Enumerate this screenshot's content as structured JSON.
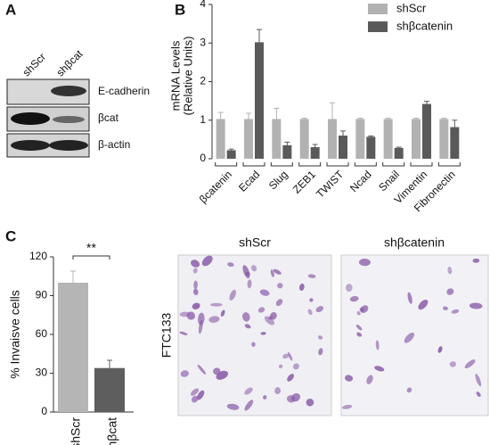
{
  "panel_labels": [
    "A",
    "B",
    "C"
  ],
  "blot": {
    "lanes": [
      "shScr",
      "shβcat"
    ],
    "bands": [
      "E-cadherin",
      "βcat",
      "β-actin"
    ]
  },
  "micrographs": {
    "columns": [
      "shScr",
      "shβcatenin"
    ],
    "row": "FTC133"
  },
  "chart_data": [
    {
      "type": "grouped_bar",
      "ylabel": [
        "mRNA Levels",
        "(Relative Units)"
      ],
      "categories": [
        "βcatenin",
        "Ecad",
        "Slug",
        "ZEB1",
        "TWIST",
        "Ncad",
        "Snail",
        "Vimentin",
        "Fibronectin"
      ],
      "series": [
        {
          "name": "shScr",
          "color": "#b2b2b2",
          "values": [
            1.03,
            1.03,
            1.03,
            1.03,
            1.03,
            1.03,
            1.03,
            1.03,
            1.03
          ],
          "errors": [
            0.17,
            0.15,
            0.28,
            0.02,
            0.42,
            0.02,
            0.02,
            0.02,
            0.02
          ]
        },
        {
          "name": "shβcatenin",
          "color": "#5a5a5a",
          "values": [
            0.22,
            3.02,
            0.35,
            0.3,
            0.6,
            0.57,
            0.28,
            1.42,
            0.82
          ],
          "errors": [
            0.03,
            0.33,
            0.08,
            0.07,
            0.12,
            0.02,
            0.02,
            0.07,
            0.18
          ]
        }
      ],
      "ylim": [
        0,
        4
      ],
      "yticks": [
        0,
        1,
        2,
        3,
        4
      ],
      "grid": false,
      "legend": "top-right"
    },
    {
      "type": "bar",
      "ylabel": "% Invaisve cells",
      "categories": [
        "shScr",
        "shβcat"
      ],
      "values": [
        100,
        34
      ],
      "errors": [
        9,
        6
      ],
      "colors": [
        "#b5b5b5",
        "#5e5e5e"
      ],
      "ylim": [
        0,
        120
      ],
      "yticks": [
        0,
        30,
        60,
        90,
        120
      ],
      "grid": false,
      "annotation": "**"
    }
  ]
}
